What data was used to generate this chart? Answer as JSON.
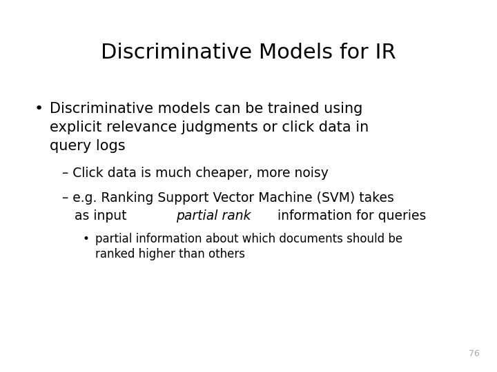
{
  "title": "Discriminative Models for IR",
  "background_color": "#ffffff",
  "text_color": "#000000",
  "title_fontsize": 22,
  "body_fontsize": 15,
  "sub_fontsize": 13.5,
  "subsub_fontsize": 12,
  "page_number": "76",
  "bullet1_line1": "Discriminative models can be trained using",
  "bullet1_line2": "explicit relevance judgments or click data in",
  "bullet1_line3": "query logs",
  "sub1": "– Click data is much cheaper, more noisy",
  "sub2_line1": "– e.g. Ranking Support Vector Machine (SVM) takes",
  "sub2_line2_pre": "as input ",
  "sub2_line2_italic": "partial rank",
  "sub2_line2_post": " information for queries",
  "subsub1_line1": "partial information about which documents should be",
  "subsub1_line2": "ranked higher than others"
}
